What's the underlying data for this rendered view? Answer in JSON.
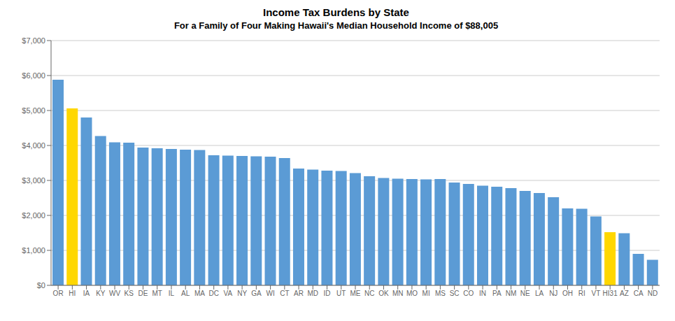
{
  "chart_data": {
    "type": "bar",
    "title": "Income Tax Burdens by State",
    "subtitle": "For a Family of Four Making Hawaii's Median Household Income of $88,005",
    "categories": [
      "OR",
      "HI",
      "IA",
      "KY",
      "WV",
      "KS",
      "DE",
      "MT",
      "IL",
      "AL",
      "MA",
      "DC",
      "VA",
      "NY",
      "GA",
      "WI",
      "CT",
      "AR",
      "MD",
      "ID",
      "UT",
      "ME",
      "NC",
      "OK",
      "MN",
      "MO",
      "MI",
      "MS",
      "SC",
      "CO",
      "IN",
      "PA",
      "NM",
      "NE",
      "LA",
      "NJ",
      "OH",
      "RI",
      "VT",
      "HI31",
      "AZ",
      "CA",
      "ND"
    ],
    "values": [
      5880,
      5060,
      4800,
      4270,
      4090,
      4080,
      3940,
      3920,
      3900,
      3880,
      3870,
      3720,
      3710,
      3700,
      3690,
      3680,
      3640,
      3340,
      3310,
      3280,
      3270,
      3210,
      3120,
      3070,
      3050,
      3040,
      3030,
      3040,
      2940,
      2900,
      2850,
      2820,
      2780,
      2700,
      2640,
      2520,
      2200,
      2190,
      1970,
      1520,
      1490,
      900,
      730
    ],
    "colors": [
      "#5B9BD5",
      "#FFD700",
      "#5B9BD5",
      "#5B9BD5",
      "#5B9BD5",
      "#5B9BD5",
      "#5B9BD5",
      "#5B9BD5",
      "#5B9BD5",
      "#5B9BD5",
      "#5B9BD5",
      "#5B9BD5",
      "#5B9BD5",
      "#5B9BD5",
      "#5B9BD5",
      "#5B9BD5",
      "#5B9BD5",
      "#5B9BD5",
      "#5B9BD5",
      "#5B9BD5",
      "#5B9BD5",
      "#5B9BD5",
      "#5B9BD5",
      "#5B9BD5",
      "#5B9BD5",
      "#5B9BD5",
      "#5B9BD5",
      "#5B9BD5",
      "#5B9BD5",
      "#5B9BD5",
      "#5B9BD5",
      "#5B9BD5",
      "#5B9BD5",
      "#5B9BD5",
      "#5B9BD5",
      "#5B9BD5",
      "#5B9BD5",
      "#5B9BD5",
      "#5B9BD5",
      "#FFD700",
      "#5B9BD5",
      "#5B9BD5",
      "#5B9BD5"
    ],
    "ylim": [
      0,
      7000
    ],
    "yticks": [
      {
        "value": 0,
        "label": "$0"
      },
      {
        "value": 1000,
        "label": "$1,000"
      },
      {
        "value": 2000,
        "label": "$2,000"
      },
      {
        "value": 3000,
        "label": "$3,000"
      },
      {
        "value": 4000,
        "label": "$4,000"
      },
      {
        "value": 5000,
        "label": "$5,000"
      },
      {
        "value": 6000,
        "label": "$6,000"
      },
      {
        "value": 7000,
        "label": "$7,000"
      }
    ],
    "grid": true
  }
}
